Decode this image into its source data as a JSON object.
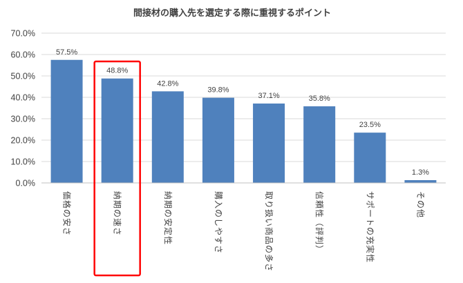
{
  "chart_data": {
    "type": "bar",
    "title": "間接材の購入先を選定する際に重視するポイント",
    "xlabel": "",
    "ylabel": "",
    "categories": [
      "価格の安さ",
      "納期の速さ",
      "納期の安定性",
      "購入のしやすさ",
      "取り扱い商品の多さ",
      "信頼性（評判）",
      "サポートの充実性",
      "その他"
    ],
    "values": [
      57.5,
      48.8,
      42.8,
      39.8,
      37.1,
      35.8,
      23.5,
      1.3
    ],
    "data_labels": [
      "57.5%",
      "48.8%",
      "42.8%",
      "39.8%",
      "37.1%",
      "35.8%",
      "23.5%",
      "1.3%"
    ],
    "ylim": [
      0,
      70
    ],
    "yticks": [
      0,
      10,
      20,
      30,
      40,
      50,
      60,
      70
    ],
    "ytick_labels": [
      "0.0%",
      "10.0%",
      "20.0%",
      "30.0%",
      "40.0%",
      "50.0%",
      "60.0%",
      "70.0%"
    ],
    "grid": true,
    "legend": "none",
    "highlighted_category": "納期の速さ",
    "colors": {
      "bar": "#4f81bd",
      "highlight_box": "#ff0000",
      "grid": "#d9d9d9",
      "text": "#404040"
    }
  }
}
